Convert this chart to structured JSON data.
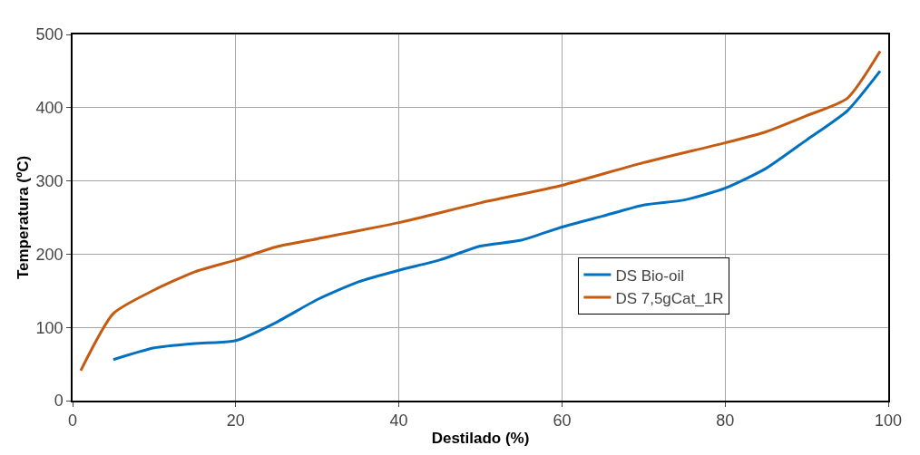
{
  "chart_data": {
    "type": "line",
    "xlabel": "Destilado (%)",
    "ylabel": "Temperatura (ºC)",
    "xlim": [
      0,
      100
    ],
    "xticks": [
      0,
      20,
      40,
      60,
      80,
      100
    ],
    "ylim": [
      0,
      500
    ],
    "yticks": [
      0,
      100,
      200,
      300,
      400,
      500
    ],
    "grid": true,
    "legend": "right",
    "marker": "none",
    "line_style": "solid",
    "series": [
      {
        "name": "DS Bio-oil",
        "color": "#0070c0",
        "x": [
          5,
          10,
          15,
          20,
          25,
          30,
          35,
          40,
          45,
          50,
          55,
          60,
          65,
          70,
          75,
          80,
          85,
          90,
          95,
          99
        ],
        "values": [
          56,
          72,
          78,
          82,
          107,
          138,
          162,
          178,
          192,
          211,
          219,
          237,
          252,
          267,
          274,
          290,
          317,
          356,
          396,
          450
        ]
      },
      {
        "name": "DS 7,5gCat_1R",
        "color": "#c55a11",
        "x": [
          1,
          5,
          10,
          15,
          20,
          25,
          30,
          40,
          50,
          60,
          70,
          80,
          85,
          90,
          95,
          99
        ],
        "values": [
          41,
          119,
          151,
          176,
          192,
          210,
          221,
          243,
          270,
          294,
          325,
          352,
          367,
          389,
          413,
          477
        ]
      }
    ]
  }
}
